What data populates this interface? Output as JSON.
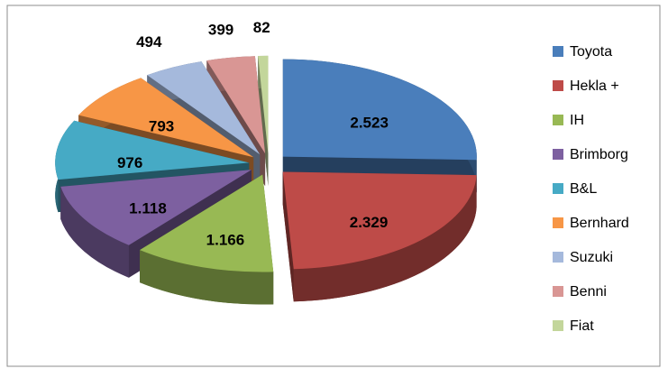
{
  "chart_data": {
    "type": "pie3d",
    "categories": [
      "Toyota",
      "Hekla +",
      "IH",
      "Brimborg",
      "B&L",
      "Bernhard",
      "Suzuki",
      "Benni",
      "Fiat"
    ],
    "values": [
      2523,
      2329,
      1166,
      1118,
      976,
      793,
      494,
      399,
      82
    ],
    "value_labels": [
      "2.523",
      "2.329",
      "1.166",
      "1.118",
      "976",
      "793",
      "494",
      "399",
      "82"
    ],
    "colors": [
      "#4a7ebb",
      "#be4b48",
      "#98b954",
      "#7d60a0",
      "#46aac5",
      "#f79646",
      "#a5b9dc",
      "#d99694",
      "#c3d69b"
    ],
    "legend": "right"
  }
}
